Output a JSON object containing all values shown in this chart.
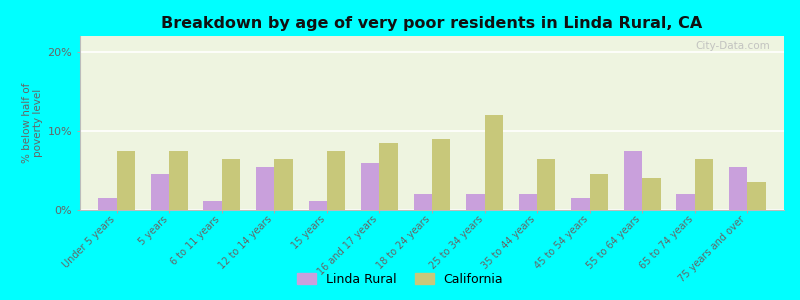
{
  "title": "Breakdown by age of very poor residents in Linda Rural, CA",
  "ylabel": "% below half of\npoverty level",
  "categories": [
    "Under 5 years",
    "5 years",
    "6 to 11 years",
    "12 to 14 years",
    "15 years",
    "16 and 17 years",
    "18 to 24 years",
    "25 to 34 years",
    "35 to 44 years",
    "45 to 54 years",
    "55 to 64 years",
    "65 to 74 years",
    "75 years and over"
  ],
  "linda_rural": [
    1.5,
    4.5,
    1.2,
    5.5,
    1.2,
    6.0,
    2.0,
    2.0,
    2.0,
    1.5,
    7.5,
    2.0,
    5.5
  ],
  "california": [
    7.5,
    7.5,
    6.5,
    6.5,
    7.5,
    8.5,
    9.0,
    12.0,
    6.5,
    4.5,
    4.0,
    6.5,
    3.5
  ],
  "linda_color": "#c9a0dc",
  "cali_color": "#c8c87a",
  "plot_bg": "#eef4e0",
  "outer_bg": "#00ffff",
  "ylim": [
    0,
    22
  ],
  "yticks": [
    0,
    10,
    20
  ],
  "ytick_labels": [
    "0%",
    "10%",
    "20%"
  ],
  "watermark": "City-Data.com"
}
